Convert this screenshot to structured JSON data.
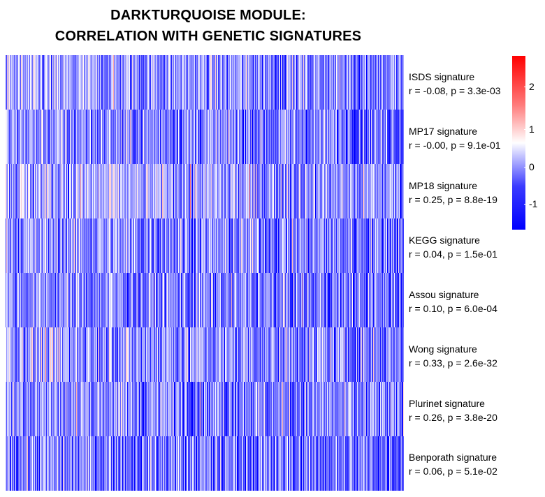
{
  "title_line1": "DARKTURQUOISE MODULE:",
  "title_line2": "CORRELATION WITH GENETIC SIGNATURES",
  "chart_data": {
    "type": "heatmap",
    "title": "DARKTURQUOISE MODULE: CORRELATION WITH GENETIC SIGNATURES",
    "rows": [
      {
        "name": "ISDS signature",
        "stats": "r = -0.08, p = 3.3e-03",
        "r": -0.08,
        "p": 0.0033,
        "bias": -0.25
      },
      {
        "name": "MP17 signature",
        "stats": "r = -0.00, p = 9.1e-01",
        "r": -0.0,
        "p": 0.91,
        "bias": -0.35
      },
      {
        "name": "MP18 signature",
        "stats": "r = 0.25, p = 8.8e-19",
        "r": 0.25,
        "p": 8.8e-19,
        "bias": -0.05
      },
      {
        "name": "KEGG signature",
        "stats": "r = 0.04, p = 1.5e-01",
        "r": 0.04,
        "p": 0.15,
        "bias": -0.3
      },
      {
        "name": "Assou signature",
        "stats": "r = 0.10, p = 6.0e-04",
        "r": 0.1,
        "p": 0.0006,
        "bias": -0.4
      },
      {
        "name": "Wong signature",
        "stats": "r = 0.33, p = 2.6e-32",
        "r": 0.33,
        "p": 2.6e-32,
        "bias": -0.15
      },
      {
        "name": "Plurinet signature",
        "stats": "r = 0.26, p = 3.8e-20",
        "r": 0.26,
        "p": 3.8e-20,
        "bias": -0.25
      },
      {
        "name": "Benporath signature",
        "stats": "r = 0.06, p = 5.1e-02",
        "r": 0.06,
        "p": 0.051,
        "bias": -0.45
      }
    ],
    "n_columns": 570,
    "color_scale": {
      "min": -1.6,
      "max": 2.8,
      "low": "#0000ff",
      "mid": "#ffffff",
      "high": "#ff0000",
      "mid_value": 0.6
    },
    "legend_ticks": [
      2,
      1,
      0,
      -1
    ]
  }
}
